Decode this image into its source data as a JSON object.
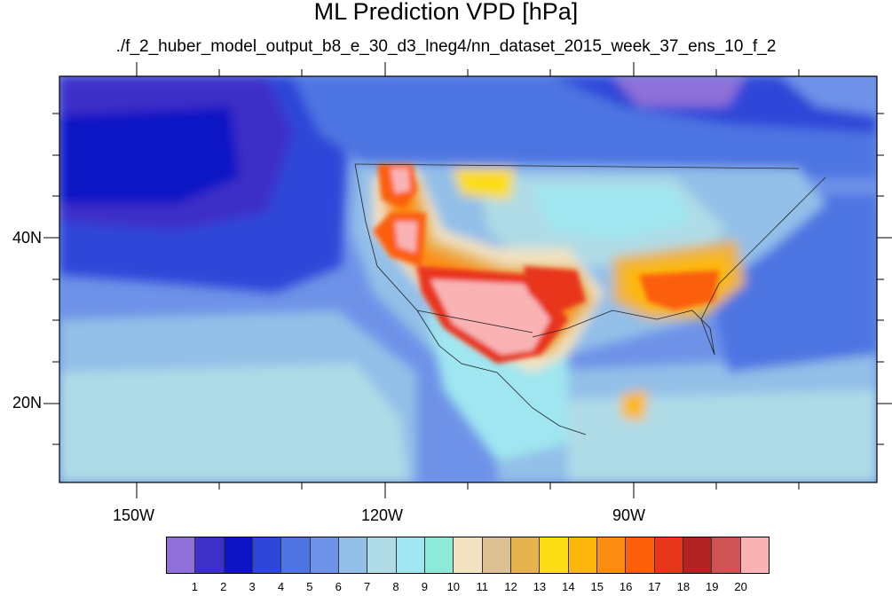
{
  "title": "ML Prediction VPD [hPa]",
  "subtitle": "./f_2_huber_model_output_b8_e_30_d3_lneg4/nn_dataset_2015_week_37_ens_10_f_2",
  "lon_labels": [
    "150W",
    "120W",
    "90W"
  ],
  "lat_labels": [
    "40N",
    "20N"
  ],
  "colorbar": {
    "labels": [
      "1",
      "2",
      "3",
      "4",
      "5",
      "6",
      "7",
      "8",
      "9",
      "10",
      "11",
      "12",
      "13",
      "14",
      "15",
      "16",
      "17",
      "18",
      "19",
      "20"
    ],
    "colors": [
      "#8f6fd8",
      "#3d2fc8",
      "#0e14c4",
      "#2e47d8",
      "#4d74e2",
      "#6e92e8",
      "#93bfe8",
      "#afdbe6",
      "#9fe6f0",
      "#8eead8",
      "#f2e2c0",
      "#dcbf92",
      "#e6b34f",
      "#fcdc12",
      "#fcb70a",
      "#fb8e12",
      "#fb5f0a",
      "#e8361b",
      "#b22423",
      "#cf5354",
      "#f9b3b5"
    ]
  }
}
